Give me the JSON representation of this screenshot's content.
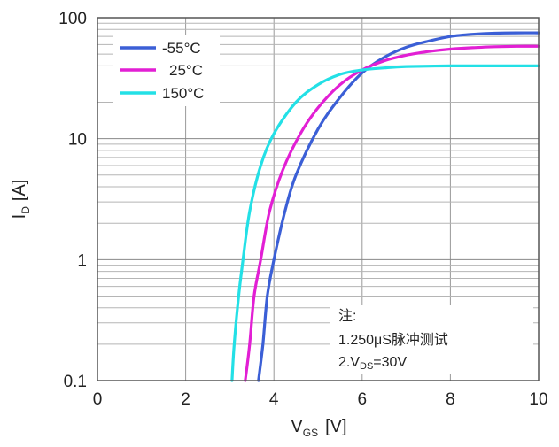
{
  "chart_data": {
    "type": "line",
    "xlabel": "V",
    "xlabel_sub": "GS",
    "xlabel_unit": "[V]",
    "ylabel": "I",
    "ylabel_sub": "D",
    "ylabel_unit": "[A]",
    "xlim": [
      0,
      10
    ],
    "ylim": [
      0.1,
      100
    ],
    "yscale": "log",
    "x_ticks": [
      0,
      2,
      4,
      6,
      8,
      10
    ],
    "y_ticks": [
      0.1,
      1,
      10,
      100
    ],
    "y_tick_labels": [
      "0.1",
      "1",
      "10",
      "100"
    ],
    "grid": true,
    "legend_position": "top-left",
    "series": [
      {
        "name": "-55°C",
        "color": "#3b5fd6",
        "points": [
          [
            3.65,
            0.1
          ],
          [
            3.75,
            0.2
          ],
          [
            3.85,
            0.5
          ],
          [
            4.0,
            1.0
          ],
          [
            4.25,
            2.5
          ],
          [
            4.5,
            5.0
          ],
          [
            5.0,
            12.0
          ],
          [
            5.5,
            22.0
          ],
          [
            6.0,
            35.0
          ],
          [
            6.5,
            47.0
          ],
          [
            7.0,
            57.0
          ],
          [
            7.5,
            64.0
          ],
          [
            8.0,
            70.0
          ],
          [
            8.5,
            73.0
          ],
          [
            9.0,
            74.5
          ],
          [
            9.5,
            75.0
          ],
          [
            10.0,
            75.0
          ]
        ]
      },
      {
        "name": "25°C",
        "color": "#e21fd4",
        "points": [
          [
            3.35,
            0.1
          ],
          [
            3.45,
            0.2
          ],
          [
            3.55,
            0.5
          ],
          [
            3.7,
            1.0
          ],
          [
            3.9,
            2.5
          ],
          [
            4.2,
            5.5
          ],
          [
            4.6,
            11.0
          ],
          [
            5.0,
            18.0
          ],
          [
            5.5,
            28.0
          ],
          [
            6.0,
            37.0
          ],
          [
            6.5,
            44.0
          ],
          [
            7.0,
            49.0
          ],
          [
            7.5,
            52.5
          ],
          [
            8.0,
            55.0
          ],
          [
            8.5,
            56.5
          ],
          [
            9.0,
            57.5
          ],
          [
            9.5,
            58.0
          ],
          [
            10.0,
            58.0
          ]
        ]
      },
      {
        "name": "150°C",
        "color": "#23e0e6",
        "points": [
          [
            3.05,
            0.1
          ],
          [
            3.1,
            0.2
          ],
          [
            3.2,
            0.5
          ],
          [
            3.3,
            1.0
          ],
          [
            3.45,
            2.5
          ],
          [
            3.7,
            6.0
          ],
          [
            4.0,
            11.0
          ],
          [
            4.5,
            20.0
          ],
          [
            5.0,
            28.0
          ],
          [
            5.5,
            34.0
          ],
          [
            6.0,
            37.0
          ],
          [
            6.5,
            38.5
          ],
          [
            7.0,
            39.5
          ],
          [
            8.0,
            40.0
          ],
          [
            9.0,
            40.0
          ],
          [
            10.0,
            40.0
          ]
        ]
      }
    ],
    "annotation": {
      "line1": "注:",
      "line2": "1.250μS脉冲测试",
      "line3_prefix": "2.V",
      "line3_sub": "DS",
      "line3_suffix": "=30V"
    }
  }
}
